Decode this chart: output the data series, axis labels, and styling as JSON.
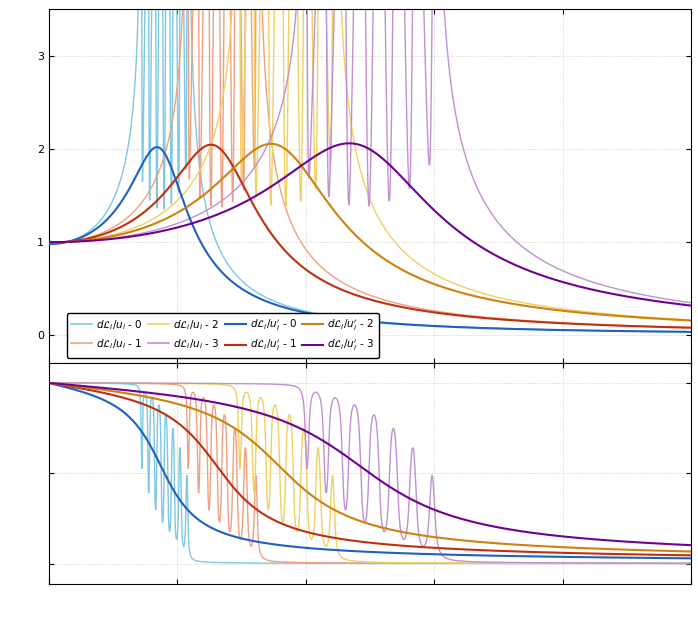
{
  "colors_undamped": [
    "#7ec8e3",
    "#f0a080",
    "#f0d060",
    "#c090d0"
  ],
  "colors_damped": [
    "#2060c0",
    "#c03010",
    "#d08010",
    "#700090"
  ],
  "fig_bg": "#ffffff",
  "plot_bg": "#ffffff",
  "grid_color": "#bbbbbb",
  "freq_min": 0,
  "freq_max": 1000,
  "res_freqs": [
    180,
    270,
    370,
    500
  ],
  "zeta_u": 0.008,
  "zeta_d": 0.2,
  "n_modes_u": 8,
  "legend_row1": [
    "d\\mathcal{L}_i/u_i - 0",
    "d\\mathcal{L}_i/u_i - 1",
    "d\\mathcal{L}_i/u_i - 2",
    "d\\mathcal{L}_i/u_i - 3"
  ],
  "legend_row2": [
    "d\\mathcal{L}_i/u_i' - 0",
    "d\\mathcal{L}_i/u_i' - 1",
    "d\\mathcal{L}_i/u_i' - 2",
    "d\\mathcal{L}_i/u_i' - 3"
  ]
}
